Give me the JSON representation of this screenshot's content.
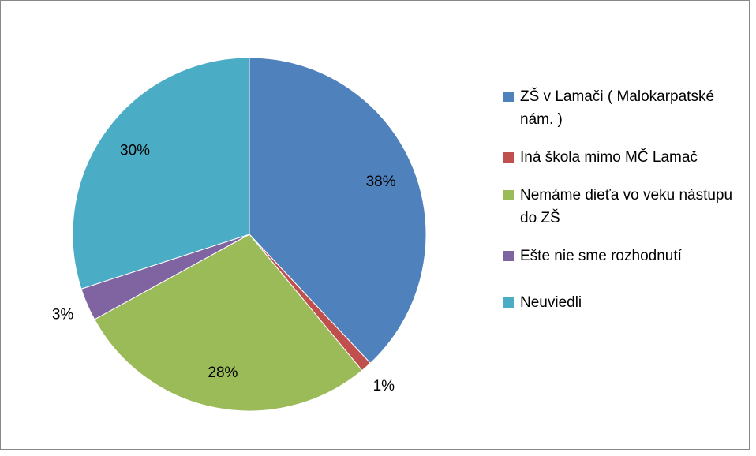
{
  "chart_data": {
    "type": "pie",
    "categories": [
      "ZŠ v Lamači ( Malokarpatské nám. )",
      "Iná škola mimo MČ Lamač",
      "Nemáme dieťa vo veku nástupu do ZŠ",
      "Ešte nie sme rozhodnutí",
      "Neuviedli"
    ],
    "values": [
      38,
      1,
      28,
      3,
      30
    ],
    "value_labels": [
      "38%",
      "1%",
      "28%",
      "3%",
      "30%"
    ],
    "colors": [
      "#4f81bd",
      "#c0504d",
      "#9bbb59",
      "#8064a2",
      "#4bacc6"
    ],
    "legend": "right"
  }
}
